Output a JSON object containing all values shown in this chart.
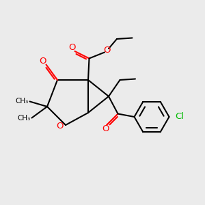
{
  "bg_color": "#ebebeb",
  "bond_color": "#000000",
  "oxygen_color": "#ff0000",
  "chlorine_color": "#00bb00",
  "line_width": 1.5,
  "figsize": [
    3.0,
    3.0
  ],
  "dpi": 100,
  "xlim": [
    0,
    10
  ],
  "ylim": [
    0,
    10
  ]
}
